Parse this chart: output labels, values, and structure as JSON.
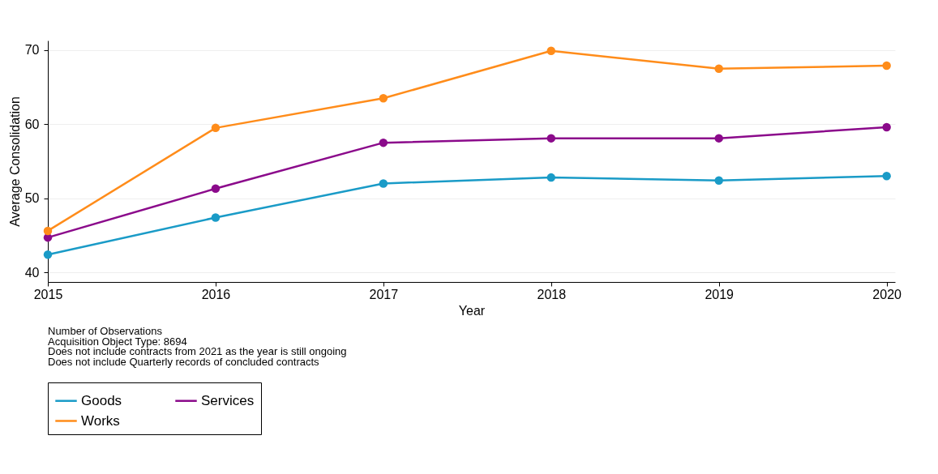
{
  "chart_data": {
    "type": "line",
    "xlabel": "Year",
    "ylabel": "Average Consolidation",
    "x": [
      2015,
      2016,
      2017,
      2018,
      2019,
      2020
    ],
    "xlim": [
      2015,
      2020.05
    ],
    "xticks": [
      2015,
      2016,
      2017,
      2018,
      2019,
      2020
    ],
    "ylim": [
      38.7,
      71.3
    ],
    "yticks": [
      40,
      50,
      60,
      70
    ],
    "grid": "y",
    "legend": "bottom",
    "marker": "circle",
    "line_style": "solid",
    "series": [
      {
        "name": "Goods",
        "color": "#1a9bc7",
        "values": [
          42.4,
          47.4,
          52.0,
          52.8,
          52.4,
          53.0
        ]
      },
      {
        "name": "Services",
        "color": "#8b0a8b",
        "values": [
          44.7,
          51.3,
          57.5,
          58.1,
          58.1,
          59.6
        ]
      },
      {
        "name": "Works",
        "color": "#ff8c1a",
        "values": [
          45.6,
          59.5,
          63.5,
          69.9,
          67.5,
          67.9
        ]
      }
    ],
    "annotations": [
      "Number of Observations",
      "Acquisition Object Type: 8694",
      "Does not include contracts from 2021 as the year is still ongoing",
      "Does not include Quarterly records of concluded contracts"
    ]
  }
}
